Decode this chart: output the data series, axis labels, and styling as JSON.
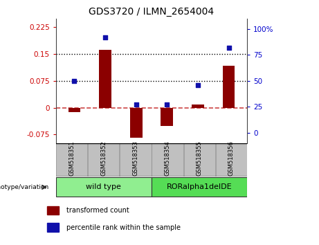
{
  "title": "GDS3720 / ILMN_2654004",
  "samples": [
    "GSM518351",
    "GSM518352",
    "GSM518353",
    "GSM518354",
    "GSM518355",
    "GSM518356"
  ],
  "transformed_counts": [
    -0.012,
    0.162,
    -0.085,
    -0.052,
    0.008,
    0.118
  ],
  "percentile_ranks": [
    50,
    92,
    27,
    27,
    46,
    82
  ],
  "left_ylim": [
    -0.1,
    0.25
  ],
  "left_yticks": [
    -0.075,
    0.0,
    0.075,
    0.15,
    0.225
  ],
  "left_yticklabels": [
    "-0.075",
    "0",
    "0.075",
    "0.15",
    "0.225"
  ],
  "right_ylim": [
    -10,
    110
  ],
  "right_yticks": [
    0,
    25,
    50,
    75,
    100
  ],
  "right_yticklabels": [
    "0",
    "25",
    "50",
    "75",
    "100%"
  ],
  "hline_y_left": [
    0.075,
    0.15
  ],
  "bar_color": "#8B0000",
  "dot_color": "#1010AA",
  "groups": [
    {
      "label": "wild type",
      "start": 0,
      "end": 2,
      "color": "#90EE90"
    },
    {
      "label": "RORalpha1delDE",
      "start": 3,
      "end": 5,
      "color": "#55DD55"
    }
  ],
  "genotype_label": "genotype/variation",
  "legend_items": [
    "transformed count",
    "percentile rank within the sample"
  ],
  "tick_label_color_left": "#CC0000",
  "tick_label_color_right": "#0000CC",
  "zero_dashed_color": "#CC4444",
  "tick_area_bg": "#C0C0C0",
  "tick_area_edge": "#888888"
}
